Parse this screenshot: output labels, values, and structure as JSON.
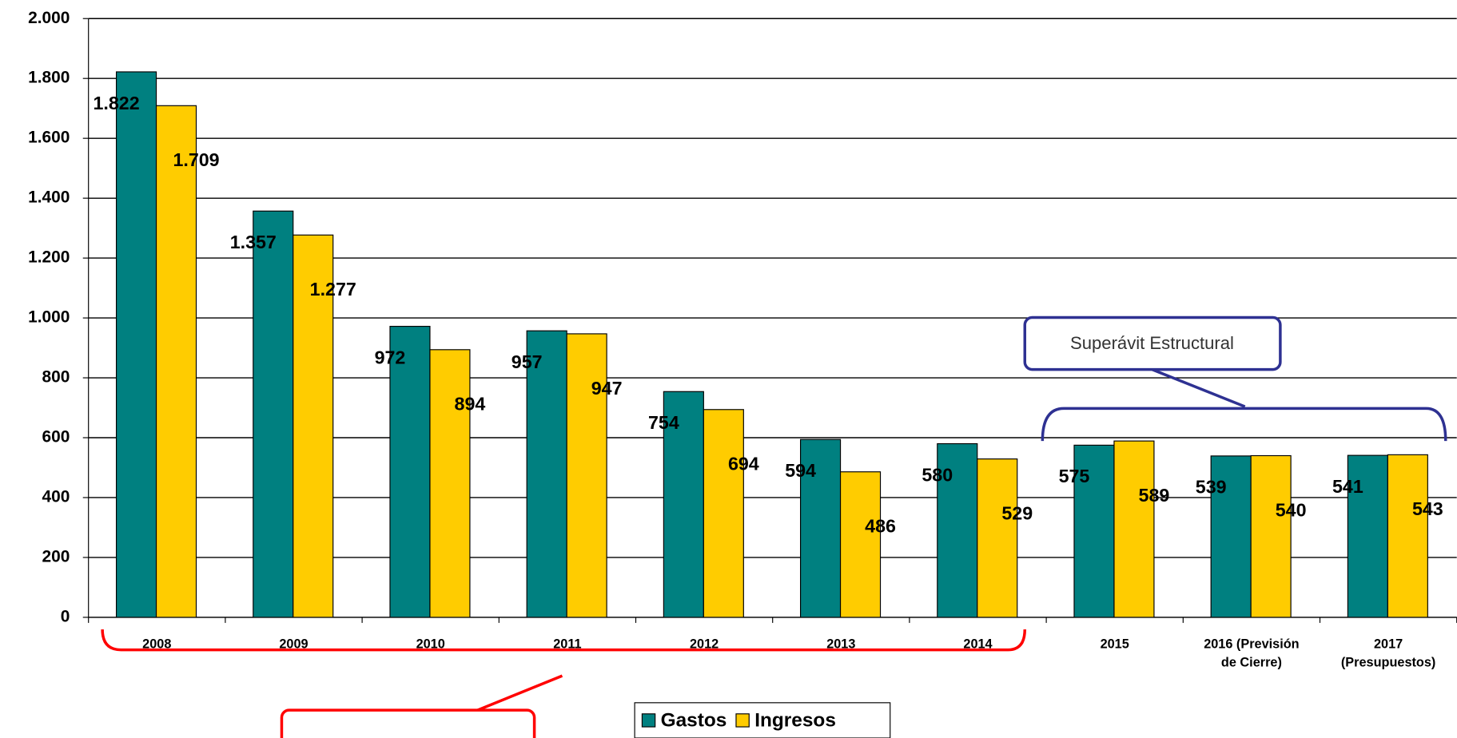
{
  "chart_data": {
    "type": "bar",
    "categories": [
      "2008",
      "2009",
      "2010",
      "2011",
      "2012",
      "2013",
      "2014",
      "2015",
      "2016 (Previsión de Cierre)",
      "2017 (Presupuestos)"
    ],
    "series": [
      {
        "name": "Gastos",
        "color": "#008080",
        "values": [
          1822,
          1357,
          972,
          957,
          754,
          594,
          580,
          575,
          539,
          541
        ],
        "value_labels": [
          "1.822",
          "1.357",
          "972",
          "957",
          "754",
          "594",
          "580",
          "575",
          "539",
          "541"
        ]
      },
      {
        "name": "Ingresos",
        "color": "#ffcc00",
        "values": [
          1709,
          1277,
          894,
          947,
          694,
          486,
          529,
          589,
          540,
          543
        ],
        "value_labels": [
          "1.709",
          "1.277",
          "894",
          "947",
          "694",
          "486",
          "529",
          "589",
          "540",
          "543"
        ]
      }
    ],
    "ylim": [
      0,
      2000
    ],
    "yticks": [
      0,
      200,
      400,
      600,
      800,
      {
        "value": 1000,
        "label": "1.000"
      },
      {
        "value": 1200,
        "label": "1.200"
      },
      {
        "value": 1400,
        "label": "1.400"
      },
      {
        "value": 1600,
        "label": "1.600"
      },
      {
        "value": 1800,
        "label": "1.800"
      },
      {
        "value": 2000,
        "label": "2.000"
      }
    ],
    "grid": true,
    "annotations": [
      "Superávit Estructural"
    ]
  }
}
